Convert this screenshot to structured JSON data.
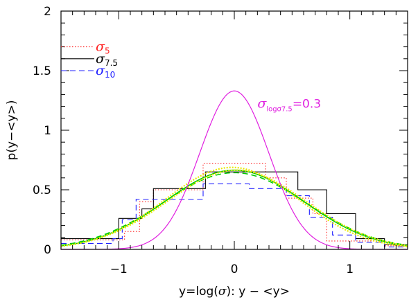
{
  "chart_data": {
    "type": "line",
    "xlabel_parts": {
      "pre": "y=log(",
      "sym": "σ",
      "post": "): y − <y>"
    },
    "ylabel": "p(y−<y>)",
    "xlim": [
      -1.5,
      1.5
    ],
    "ylim": [
      0,
      2
    ],
    "xticks": [
      -1,
      0,
      1
    ],
    "xtick_labels": [
      "−1",
      "0",
      "1"
    ],
    "yticks": [
      0,
      0.5,
      1,
      1.5,
      2
    ],
    "ytick_labels": [
      "0",
      "0.5",
      "1",
      "1.5",
      "2"
    ],
    "grid": false,
    "legend_position": "top-left",
    "legend": [
      {
        "sym": "σ",
        "sub": "5",
        "color": "#ff2020",
        "dash": "dotted"
      },
      {
        "sym": "σ",
        "sub": "7.5",
        "color": "#000000",
        "dash": "solid"
      },
      {
        "sym": "σ",
        "sub": "10",
        "color": "#2020ff",
        "dash": "dashed"
      }
    ],
    "annotation": {
      "sym": "σ",
      "sub": "logσ7.5",
      "value": "=0.3",
      "color": "#e020e0",
      "x": 0.2,
      "y": 1.19
    },
    "gaussian": {
      "color": "#e020e0",
      "mean": 0.0,
      "sigma": 0.3
    },
    "smooth_fits": [
      {
        "color": "#00cc00",
        "mean": 0.0,
        "sigma": 0.6,
        "style": "solid"
      },
      {
        "color": "#00cc00",
        "mean": 0.0,
        "sigma": 0.62,
        "style": "dashed"
      },
      {
        "color": "#e8e800",
        "mean": -0.02,
        "sigma": 0.58,
        "style": "dotted"
      },
      {
        "color": "#e8e800",
        "mean": 0.02,
        "sigma": 0.6,
        "style": "dotted"
      }
    ],
    "histograms": [
      {
        "color": "#ff2020",
        "dash": "dotted",
        "edges": [
          -1.5,
          -0.95,
          -0.82,
          -0.7,
          -0.27,
          0.27,
          0.45,
          0.68,
          0.8,
          1.3,
          1.5
        ],
        "values": [
          0.08,
          0.15,
          0.4,
          0.5,
          0.72,
          0.6,
          0.43,
          0.3,
          0.07,
          0.03
        ]
      },
      {
        "color": "#000000",
        "dash": "solid",
        "edges": [
          -1.5,
          -1.0,
          -0.8,
          -0.7,
          -0.25,
          0.55,
          0.8,
          1.05,
          1.3,
          1.5
        ],
        "values": [
          0.09,
          0.26,
          0.34,
          0.51,
          0.65,
          0.5,
          0.3,
          0.09,
          0.04
        ]
      },
      {
        "color": "#2020ff",
        "dash": "dashed",
        "edges": [
          -1.5,
          -1.05,
          -0.97,
          -0.85,
          -0.27,
          0.13,
          0.45,
          0.65,
          0.85,
          1.05,
          1.3,
          1.5
        ],
        "values": [
          0.05,
          0.09,
          0.25,
          0.42,
          0.55,
          0.51,
          0.45,
          0.27,
          0.12,
          0.06,
          0.02
        ]
      }
    ]
  }
}
